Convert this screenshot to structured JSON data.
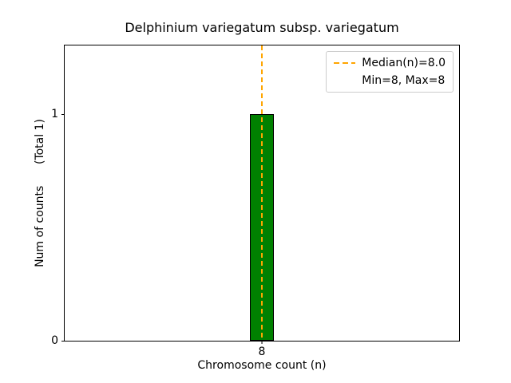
{
  "figure": {
    "title": "Delphinium variegatum subsp. variegatum",
    "xlabel": "Chromosome count (n)",
    "ylabel": "Num of counts      (Total 1)"
  },
  "axes": {
    "yticks": [
      {
        "value": 0,
        "label": "0"
      },
      {
        "value": 1,
        "label": "1"
      }
    ],
    "xticks": [
      {
        "value": 8,
        "label": "8"
      }
    ]
  },
  "legend": {
    "items": [
      {
        "label": "Median(n)=8.0",
        "swatch": "dashed-line",
        "color": "#ffa500"
      },
      {
        "label": "Min=8, Max=8",
        "swatch": "none",
        "color": ""
      }
    ]
  },
  "chart_data": {
    "type": "bar",
    "title": "Delphinium variegatum subsp. variegatum",
    "xlabel": "Chromosome count (n)",
    "ylabel": "Num of counts (Total 1)",
    "categories": [
      8
    ],
    "values": [
      1
    ],
    "total_counts": 1,
    "median": 8.0,
    "min": 8,
    "max": 8,
    "xlim": [
      5,
      11
    ],
    "ylim": [
      0,
      1.305
    ],
    "bar_width": 0.36,
    "bar_color": "#008000",
    "bar_edge_color": "#000000",
    "median_line": {
      "x": 8,
      "color": "#ffa500",
      "style": "dashed",
      "width": 2
    },
    "grid": false,
    "legend_position": "upper right"
  }
}
